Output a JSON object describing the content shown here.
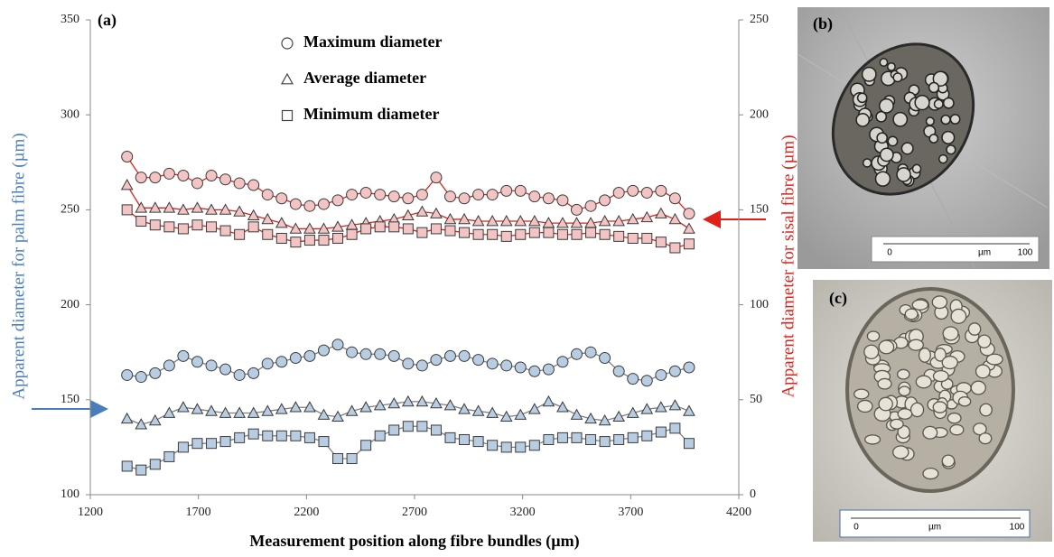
{
  "chart_data": {
    "type": "scatter-line",
    "panel_label": "(a)",
    "x_label": "Measurement position along fibre bundles (µm)",
    "y_label": "Apparent diameter for palm fibre (µm)",
    "y2_label": "Apparent diameter for sisal fibre (µm)",
    "y_label_color": "#4a7ebb",
    "y2_label_color": "#e0211b",
    "xlim": [
      1200,
      4200
    ],
    "xticks": [
      1200,
      1700,
      2200,
      2700,
      3200,
      3700,
      4200
    ],
    "ylim": [
      100,
      350
    ],
    "yticks": [
      100,
      150,
      200,
      250,
      300,
      350
    ],
    "y2lim": [
      0,
      250
    ],
    "y2ticks": [
      0,
      50,
      100,
      150,
      200,
      250
    ],
    "legend": [
      {
        "label": "Maximum diameter",
        "marker": "circle"
      },
      {
        "label": "Average diameter",
        "marker": "triangle"
      },
      {
        "label": "Minimum diameter",
        "marker": "square"
      }
    ],
    "x": [
      1370,
      1435,
      1500,
      1565,
      1630,
      1695,
      1760,
      1825,
      1890,
      1955,
      2020,
      2085,
      2150,
      2215,
      2280,
      2345,
      2410,
      2475,
      2540,
      2605,
      2670,
      2735,
      2800,
      2865,
      2930,
      2995,
      3060,
      3125,
      3190,
      3255,
      3320,
      3385,
      3450,
      3515,
      3580,
      3645,
      3710,
      3775,
      3840,
      3905,
      3970
    ],
    "series": [
      {
        "marker": "circle",
        "color": "#7f7f7f",
        "fill": "#b9cde2",
        "values": [
          163,
          162,
          164,
          168,
          173,
          170,
          168,
          166,
          163,
          164,
          169,
          170,
          172,
          173,
          176,
          179,
          175,
          174,
          174,
          173,
          169,
          168,
          171,
          173,
          173,
          171,
          169,
          168,
          167,
          165,
          166,
          170,
          174,
          175,
          172,
          165,
          161,
          160,
          163,
          165,
          167
        ]
      },
      {
        "marker": "triangle",
        "color": "#7f7f7f",
        "fill": "#b9cde2",
        "values": [
          140,
          137,
          139,
          143,
          146,
          145,
          144,
          143,
          143,
          143,
          144,
          145,
          146,
          146,
          142,
          141,
          144,
          146,
          147,
          148,
          149,
          149,
          148,
          147,
          145,
          144,
          143,
          141,
          142,
          145,
          149,
          146,
          142,
          140,
          139,
          141,
          143,
          145,
          146,
          147,
          144
        ]
      },
      {
        "marker": "square",
        "color": "#7f7f7f",
        "fill": "#b9cde2",
        "values": [
          115,
          113,
          116,
          120,
          125,
          127,
          127,
          128,
          130,
          132,
          131,
          131,
          131,
          130,
          128,
          119,
          119,
          126,
          131,
          134,
          136,
          136,
          134,
          130,
          129,
          128,
          126,
          125,
          125,
          126,
          129,
          130,
          130,
          129,
          128,
          129,
          130,
          131,
          133,
          135,
          127
        ]
      },
      {
        "marker": "circle",
        "color": "#e0211b",
        "fill": "#f2c4c4",
        "axis": "y2",
        "values": [
          178,
          167,
          167,
          169,
          168,
          164,
          168,
          166,
          164,
          163,
          158,
          156,
          153,
          152,
          153,
          155,
          158,
          159,
          158,
          157,
          156,
          158,
          167,
          157,
          156,
          158,
          158,
          160,
          160,
          157,
          156,
          155,
          150,
          152,
          155,
          159,
          160,
          159,
          160,
          156,
          148
        ]
      },
      {
        "marker": "triangle",
        "color": "#e0211b",
        "fill": "#f2c4c4",
        "axis": "y2",
        "values": [
          163,
          151,
          151,
          151,
          150,
          151,
          150,
          150,
          149,
          147,
          145,
          143,
          140,
          140,
          140,
          141,
          142,
          143,
          144,
          145,
          147,
          149,
          148,
          145,
          145,
          144,
          144,
          144,
          144,
          144,
          143,
          143,
          143,
          143,
          144,
          144,
          145,
          146,
          148,
          145,
          140
        ]
      },
      {
        "marker": "square",
        "color": "#e0211b",
        "fill": "#f2c4c4",
        "axis": "y2",
        "values": [
          150,
          144,
          142,
          141,
          140,
          142,
          141,
          139,
          137,
          141,
          137,
          135,
          133,
          134,
          134,
          135,
          137,
          140,
          141,
          141,
          140,
          138,
          140,
          139,
          138,
          137,
          137,
          136,
          137,
          138,
          138,
          137,
          137,
          138,
          137,
          136,
          135,
          135,
          133,
          130,
          132
        ]
      }
    ]
  },
  "images": [
    {
      "label": "(b)",
      "scale_start": 0,
      "scale_unit": "µm",
      "scale_end": 100
    },
    {
      "label": "(c)",
      "scale_start": 0,
      "scale_unit": "µm",
      "scale_end": 100
    }
  ]
}
